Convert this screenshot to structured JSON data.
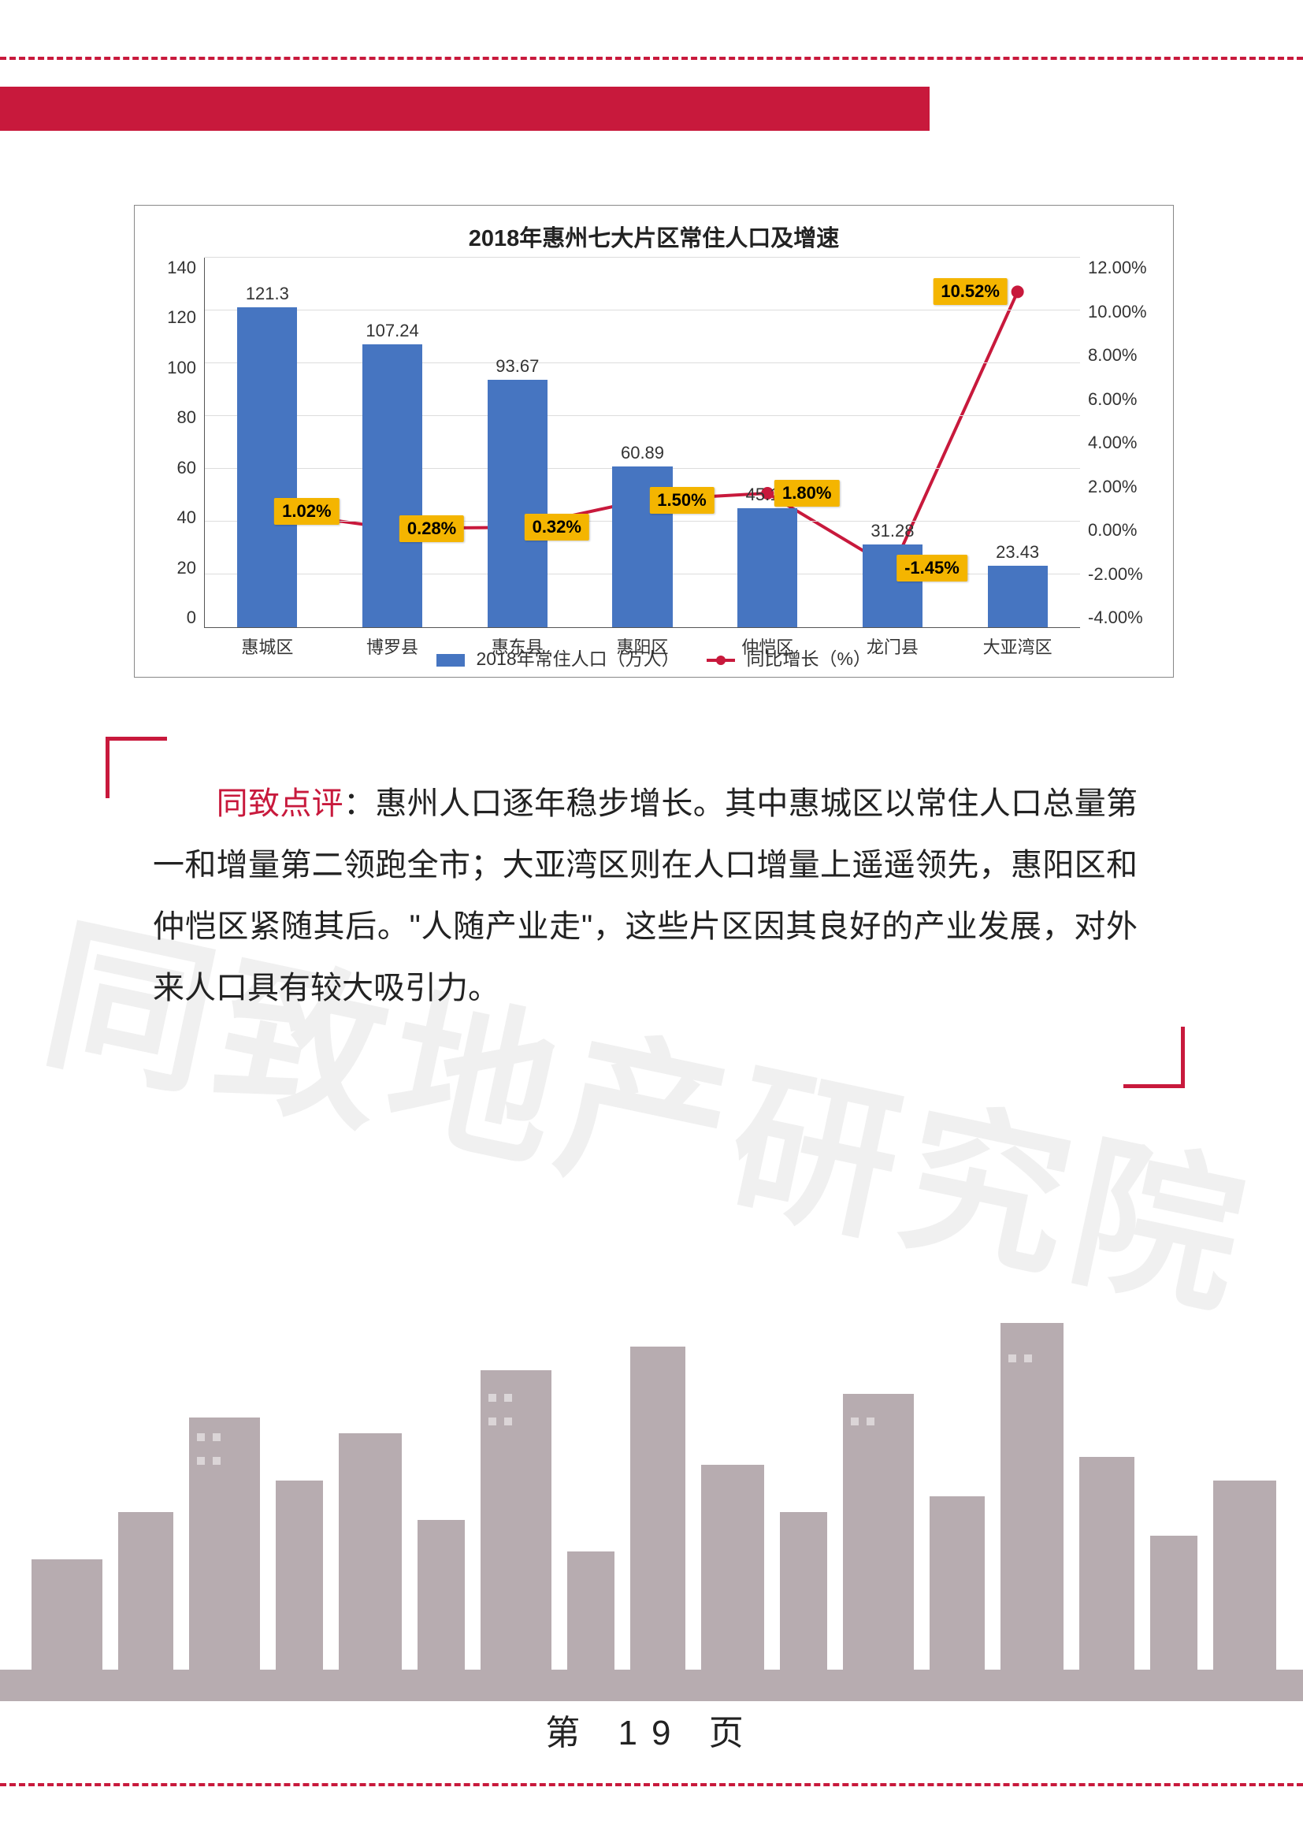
{
  "chart": {
    "title": "2018年惠州七大片区常住人口及增速",
    "categories": [
      "惠城区",
      "博罗县",
      "惠东县",
      "惠阳区",
      "仲恺区",
      "龙门县",
      "大亚湾区"
    ],
    "bar_values": [
      121.3,
      107.24,
      93.67,
      60.89,
      45.19,
      31.28,
      23.43
    ],
    "y_left": {
      "min": 0,
      "max": 140,
      "step": 20
    },
    "y_right": {
      "min": -4.0,
      "max": 12.0,
      "step": 2.0
    },
    "line_pcts": [
      1.02,
      0.28,
      0.32,
      1.5,
      1.8,
      -1.45,
      10.52
    ],
    "pct_labels": [
      "1.02%",
      "0.28%",
      "0.32%",
      "1.50%",
      "1.80%",
      "-1.45%",
      "10.52%"
    ],
    "bar_color": "#4675c1",
    "line_color": "#c8193c",
    "pct_bg": "#f4b500",
    "legend_bar": "2018年常住人口（万人）",
    "legend_line": "同比增长（%）"
  },
  "comment": {
    "lead": "同致点评",
    "sep": "：",
    "body": "惠州人口逐年稳步增长。其中惠城区以常住人口总量第一和增量第二领跑全市；大亚湾区则在人口增量上遥遥领先，惠阳区和仲恺区紧随其后。\"人随产业走\"，这些片区因其良好的产业发展，对外来人口具有较大吸引力。"
  },
  "watermark": "同致地产研究院",
  "page_label_prefix": "第",
  "page_number": "19",
  "page_label_suffix": "页",
  "accent": "#c8193c"
}
